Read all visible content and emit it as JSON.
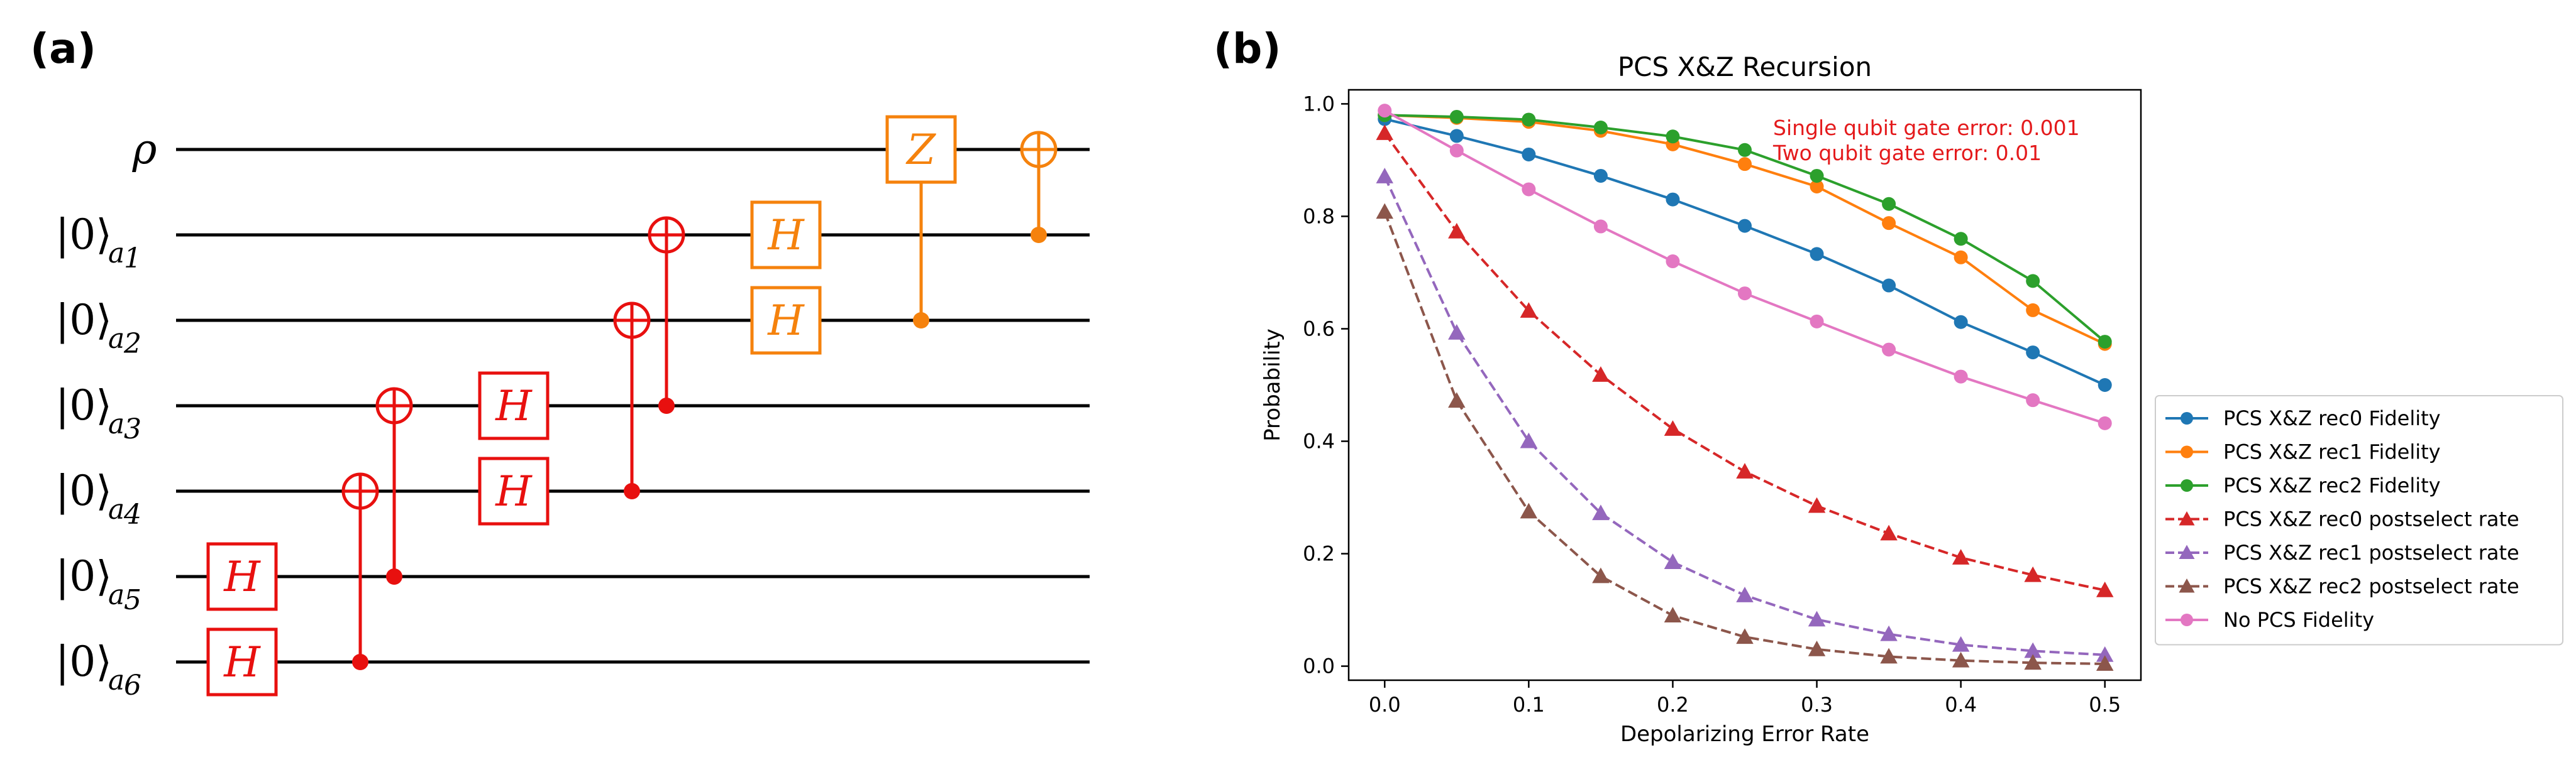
{
  "panel_a": {
    "label": "(a)",
    "wires": [
      {
        "name": "rho",
        "ket": "ρ",
        "sub": ""
      },
      {
        "name": "a1",
        "ket": "|0⟩",
        "sub": "a",
        "subnum": "1"
      },
      {
        "name": "a2",
        "ket": "|0⟩",
        "sub": "a",
        "subnum": "2"
      },
      {
        "name": "a3",
        "ket": "|0⟩",
        "sub": "a",
        "subnum": "3"
      },
      {
        "name": "a4",
        "ket": "|0⟩",
        "sub": "a",
        "subnum": "4"
      },
      {
        "name": "a5",
        "ket": "|0⟩",
        "sub": "a",
        "subnum": "5"
      },
      {
        "name": "a6",
        "ket": "|0⟩",
        "sub": "a",
        "subnum": "6"
      }
    ],
    "colors": {
      "red": "#e8100f",
      "orange": "#f5820d"
    },
    "gates": [
      {
        "type": "box",
        "label": "H",
        "wire": 5,
        "col": 0,
        "color": "red"
      },
      {
        "type": "box",
        "label": "H",
        "wire": 6,
        "col": 0,
        "color": "red"
      },
      {
        "type": "cnot",
        "control": 6,
        "target": 4,
        "col": 1,
        "color": "red"
      },
      {
        "type": "cnot",
        "control": 5,
        "target": 3,
        "col": 2,
        "color": "red"
      },
      {
        "type": "box",
        "label": "H",
        "wire": 3,
        "col": 3,
        "color": "red"
      },
      {
        "type": "box",
        "label": "H",
        "wire": 4,
        "col": 3,
        "color": "red"
      },
      {
        "type": "cnot",
        "control": 4,
        "target": 2,
        "col": 4,
        "color": "red"
      },
      {
        "type": "cnot",
        "control": 3,
        "target": 1,
        "col": 5,
        "color": "red"
      },
      {
        "type": "box",
        "label": "H",
        "wire": 1,
        "col": 6,
        "color": "orange"
      },
      {
        "type": "box",
        "label": "H",
        "wire": 2,
        "col": 6,
        "color": "orange"
      },
      {
        "type": "cbox",
        "label": "Z",
        "control": 2,
        "target": 0,
        "col": 7,
        "color": "orange"
      },
      {
        "type": "cnot",
        "control": 1,
        "target": 0,
        "col": 8,
        "color": "orange"
      }
    ]
  },
  "panel_b": {
    "label": "(b)"
  },
  "chart_data": {
    "type": "line",
    "title": "PCS X&Z Recursion",
    "xlabel": "Depolarizing Error Rate",
    "ylabel": "Probability",
    "xlim": [
      -0.025,
      0.525
    ],
    "ylim": [
      -0.025,
      1.025
    ],
    "xticks": [
      0.0,
      0.1,
      0.2,
      0.3,
      0.4,
      0.5
    ],
    "xtick_labels": [
      "0.0",
      "0.1",
      "0.2",
      "0.3",
      "0.4",
      "0.5"
    ],
    "yticks": [
      0.0,
      0.2,
      0.4,
      0.6,
      0.8,
      1.0
    ],
    "ytick_labels": [
      "0.0",
      "0.2",
      "0.4",
      "0.6",
      "0.8",
      "1.0"
    ],
    "grid": false,
    "legend_position": "outside-right",
    "annotations": [
      "Single qubit gate error: 0.001",
      "Two qubit gate error: 0.01"
    ],
    "annotation_color": "#e41a1c",
    "x": [
      0.0,
      0.05,
      0.1,
      0.15,
      0.2,
      0.25,
      0.3,
      0.35,
      0.4,
      0.45,
      0.5
    ],
    "series": [
      {
        "name": "PCS X&Z rec0 Fidelity",
        "color": "#1f77b4",
        "style": "solid",
        "marker": "circle",
        "values": [
          0.973,
          0.943,
          0.91,
          0.872,
          0.83,
          0.783,
          0.733,
          0.677,
          0.612,
          0.558,
          0.5
        ]
      },
      {
        "name": "PCS X&Z rec1 Fidelity",
        "color": "#ff7f0e",
        "style": "solid",
        "marker": "circle",
        "values": [
          0.98,
          0.975,
          0.968,
          0.952,
          0.928,
          0.893,
          0.853,
          0.788,
          0.727,
          0.633,
          0.573
        ]
      },
      {
        "name": "PCS X&Z rec2 Fidelity",
        "color": "#2ca02c",
        "style": "solid",
        "marker": "circle",
        "values": [
          0.98,
          0.977,
          0.972,
          0.958,
          0.942,
          0.918,
          0.872,
          0.822,
          0.76,
          0.685,
          0.577
        ]
      },
      {
        "name": "PCS X&Z rec0 postselect rate",
        "color": "#d62728",
        "style": "dashed",
        "marker": "triangle",
        "values": [
          0.948,
          0.773,
          0.632,
          0.518,
          0.422,
          0.346,
          0.285,
          0.236,
          0.193,
          0.162,
          0.135
        ]
      },
      {
        "name": "PCS X&Z rec1 postselect rate",
        "color": "#9467bd",
        "style": "dashed",
        "marker": "triangle",
        "values": [
          0.871,
          0.593,
          0.4,
          0.272,
          0.185,
          0.126,
          0.083,
          0.057,
          0.038,
          0.027,
          0.02
        ]
      },
      {
        "name": "PCS X&Z rec2 postselect rate",
        "color": "#8c564b",
        "style": "dashed",
        "marker": "triangle",
        "values": [
          0.808,
          0.472,
          0.275,
          0.16,
          0.09,
          0.052,
          0.03,
          0.017,
          0.01,
          0.006,
          0.004
        ]
      },
      {
        "name": "No PCS Fidelity",
        "color": "#e377c2",
        "style": "solid",
        "marker": "circle",
        "values": [
          0.988,
          0.917,
          0.848,
          0.782,
          0.72,
          0.663,
          0.613,
          0.563,
          0.515,
          0.473,
          0.432
        ]
      }
    ]
  }
}
